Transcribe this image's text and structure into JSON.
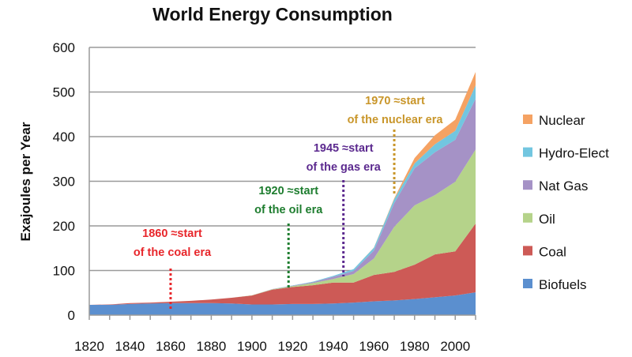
{
  "chart_data": {
    "type": "area",
    "stacked": true,
    "title": "World Energy Consumption",
    "xlabel": "",
    "ylabel": "Exajoules per Year",
    "xlim": [
      1820,
      2010
    ],
    "ylim": [
      0,
      600
    ],
    "xticks": [
      1820,
      1840,
      1860,
      1880,
      1900,
      1920,
      1940,
      1960,
      1980,
      2000
    ],
    "yticks": [
      0,
      100,
      200,
      300,
      400,
      500,
      600
    ],
    "grid": "horizontal",
    "legend_position": "right",
    "x": [
      1820,
      1830,
      1840,
      1850,
      1860,
      1870,
      1880,
      1890,
      1900,
      1910,
      1920,
      1930,
      1940,
      1950,
      1960,
      1970,
      1980,
      1990,
      2000,
      2010
    ],
    "series": [
      {
        "name": "Biofuels",
        "color": "#5b8fcf",
        "values": [
          23,
          23,
          25,
          26,
          27,
          27,
          27,
          26,
          24,
          24,
          25,
          25,
          26,
          28,
          31,
          33,
          36,
          40,
          44,
          51
        ]
      },
      {
        "name": "Coal",
        "color": "#cd5a56",
        "values": [
          0,
          1,
          2,
          2,
          3,
          5,
          8,
          13,
          20,
          33,
          38,
          42,
          47,
          45,
          59,
          64,
          77,
          96,
          99,
          154
        ]
      },
      {
        "name": "Oil",
        "color": "#b5d38a",
        "values": [
          0,
          0,
          0,
          0,
          0,
          0,
          0,
          0,
          0.5,
          1,
          2,
          5,
          8,
          19,
          37,
          101,
          133,
          133,
          156,
          166
        ]
      },
      {
        "name": "Nat Gas",
        "color": "#a592c6",
        "values": [
          0,
          0,
          0,
          0,
          0,
          0,
          0,
          0,
          0,
          0.5,
          1,
          2,
          5,
          7,
          18,
          53,
          83,
          96,
          94,
          114
        ]
      },
      {
        "name": "Hydro-Elect",
        "color": "#72c6e0",
        "values": [
          0,
          0,
          0,
          0,
          0,
          0,
          0,
          0,
          0,
          0,
          0.5,
          1,
          2,
          4,
          6,
          9,
          11,
          18,
          20,
          30
        ]
      },
      {
        "name": "Nuclear",
        "color": "#f5a263",
        "values": [
          0,
          0,
          0,
          0,
          0,
          0,
          0,
          0,
          0,
          0,
          0,
          0,
          0,
          0,
          0.5,
          2,
          12,
          20,
          25,
          30
        ]
      }
    ],
    "annotations": [
      {
        "year": 1860,
        "line1": "1860 ≈start",
        "line2": "of the coal era",
        "color": "#e8262b"
      },
      {
        "year": 1918,
        "line1": "1920 ≈start",
        "line2": "of the oil era",
        "color": "#1e7d2f"
      },
      {
        "year": 1945,
        "line1": "1945 ≈start",
        "line2": "of the gas era",
        "color": "#5c2a8f"
      },
      {
        "year": 1970,
        "line1": "1970 ≈start",
        "line2": "of the nuclear era",
        "color": "#c9962a"
      }
    ]
  }
}
